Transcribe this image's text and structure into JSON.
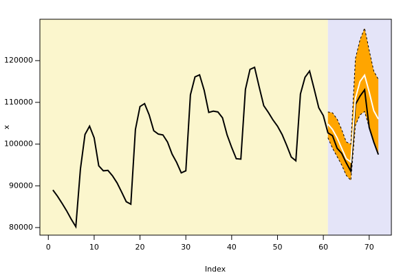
{
  "chart_data": {
    "type": "line",
    "x_label": "Index",
    "y_label": "x",
    "x": [
      1,
      2,
      3,
      4,
      5,
      6,
      7,
      8,
      9,
      10,
      11,
      12,
      13,
      14,
      15,
      16,
      17,
      18,
      19,
      20,
      21,
      22,
      23,
      24,
      25,
      26,
      27,
      28,
      29,
      30,
      31,
      32,
      33,
      34,
      35,
      36,
      37,
      38,
      39,
      40,
      41,
      42,
      43,
      44,
      45,
      46,
      47,
      48,
      49,
      50,
      51,
      52,
      53,
      54,
      55,
      56,
      57,
      58,
      59,
      60,
      61,
      62,
      63,
      64,
      65,
      66,
      67,
      68,
      69,
      70,
      71,
      72
    ],
    "forecast_start": 61,
    "region_colors": [
      "#fbf6cd",
      "#e4e4f8"
    ],
    "band_color": "#ffa500",
    "series": [
      {
        "color": "#000000",
        "dashed": false,
        "values": [
          89000,
          87500,
          85800,
          84000,
          82000,
          80200,
          94000,
          102300,
          104300,
          101500,
          94800,
          93600,
          93700,
          92400,
          90700,
          88500,
          86200,
          85600,
          103500,
          109000,
          109700,
          107000,
          103200,
          102400,
          102200,
          100500,
          97600,
          95600,
          93100,
          93600,
          111800,
          116100,
          116600,
          112900,
          107600,
          107900,
          107700,
          106300,
          102200,
          99200,
          96500,
          96400,
          113100,
          117900,
          118400,
          113700,
          109200,
          107600,
          105800,
          104300,
          102300,
          99700,
          96900,
          96000,
          112000,
          116000,
          117500,
          113200,
          108700,
          106800,
          102700,
          102000,
          99000,
          97800,
          95500,
          93500,
          109500,
          111500,
          113000,
          104000,
          100500,
          97500
        ]
      },
      {
        "color": "#ffffff",
        "dashed": false,
        "values": [
          null,
          null,
          null,
          null,
          null,
          null,
          null,
          null,
          null,
          null,
          null,
          null,
          null,
          null,
          null,
          null,
          null,
          null,
          null,
          null,
          null,
          null,
          null,
          null,
          null,
          null,
          null,
          null,
          null,
          null,
          null,
          null,
          null,
          null,
          null,
          null,
          null,
          null,
          null,
          null,
          null,
          null,
          null,
          null,
          null,
          null,
          null,
          null,
          null,
          null,
          null,
          null,
          null,
          null,
          null,
          null,
          null,
          null,
          null,
          null,
          104800,
          103500,
          101500,
          99000,
          96500,
          95700,
          111000,
          115000,
          116500,
          112500,
          108000,
          106000
        ]
      },
      {
        "color": "#000000",
        "dashed": true,
        "values": [
          null,
          null,
          null,
          null,
          null,
          null,
          null,
          null,
          null,
          null,
          null,
          null,
          null,
          null,
          null,
          null,
          null,
          null,
          null,
          null,
          null,
          null,
          null,
          null,
          null,
          null,
          null,
          null,
          null,
          null,
          null,
          null,
          null,
          null,
          null,
          null,
          null,
          null,
          null,
          null,
          null,
          null,
          null,
          null,
          null,
          null,
          null,
          null,
          null,
          null,
          null,
          null,
          null,
          null,
          null,
          null,
          null,
          null,
          null,
          null,
          107700,
          107500,
          106000,
          103500,
          100500,
          100000,
          120500,
          125000,
          127800,
          122500,
          117500,
          115500
        ]
      },
      {
        "color": "#000000",
        "dashed": true,
        "values": [
          null,
          null,
          null,
          null,
          null,
          null,
          null,
          null,
          null,
          null,
          null,
          null,
          null,
          null,
          null,
          null,
          null,
          null,
          null,
          null,
          null,
          null,
          null,
          null,
          null,
          null,
          null,
          null,
          null,
          null,
          null,
          null,
          null,
          null,
          null,
          null,
          null,
          null,
          null,
          null,
          null,
          null,
          null,
          null,
          null,
          null,
          null,
          null,
          null,
          null,
          null,
          null,
          null,
          null,
          null,
          null,
          null,
          null,
          null,
          null,
          101500,
          99000,
          97000,
          95000,
          92500,
          91300,
          104500,
          107000,
          107800,
          104000,
          100300,
          97500
        ]
      }
    ],
    "xlim": [
      -1.84,
      74.84
    ],
    "ylim": [
      78184,
      129916
    ],
    "xticks": [
      0,
      10,
      20,
      30,
      40,
      50,
      60,
      70
    ],
    "yticks": [
      80000,
      90000,
      100000,
      110000,
      120000
    ]
  }
}
